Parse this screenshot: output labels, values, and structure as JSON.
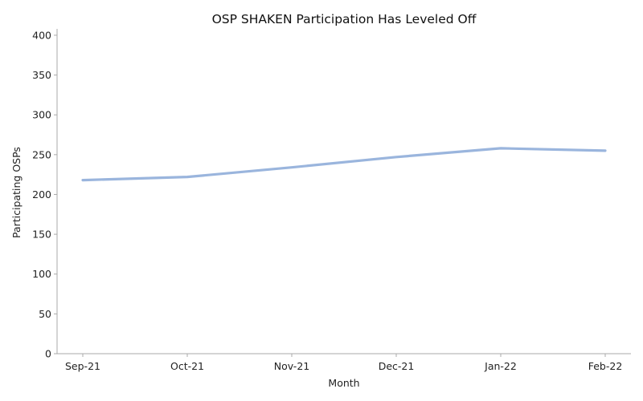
{
  "chart_data": {
    "type": "line",
    "title": "OSP SHAKEN Participation Has Leveled Off",
    "xlabel": "Month",
    "ylabel": "Participating OSPs",
    "categories": [
      "Sep-21",
      "Oct-21",
      "Nov-21",
      "Dec-21",
      "Jan-22",
      "Feb-22"
    ],
    "series": [
      {
        "values": [
          218,
          222,
          234,
          247,
          258,
          255
        ]
      }
    ],
    "ylim": [
      0,
      408
    ],
    "yticks": [
      0,
      50,
      100,
      150,
      200,
      250,
      300,
      350,
      400
    ],
    "grid": false,
    "legend": "none",
    "colors": {
      "line": "#9ab5dd",
      "axis": "#aaaaaa",
      "text": "#222222"
    }
  }
}
